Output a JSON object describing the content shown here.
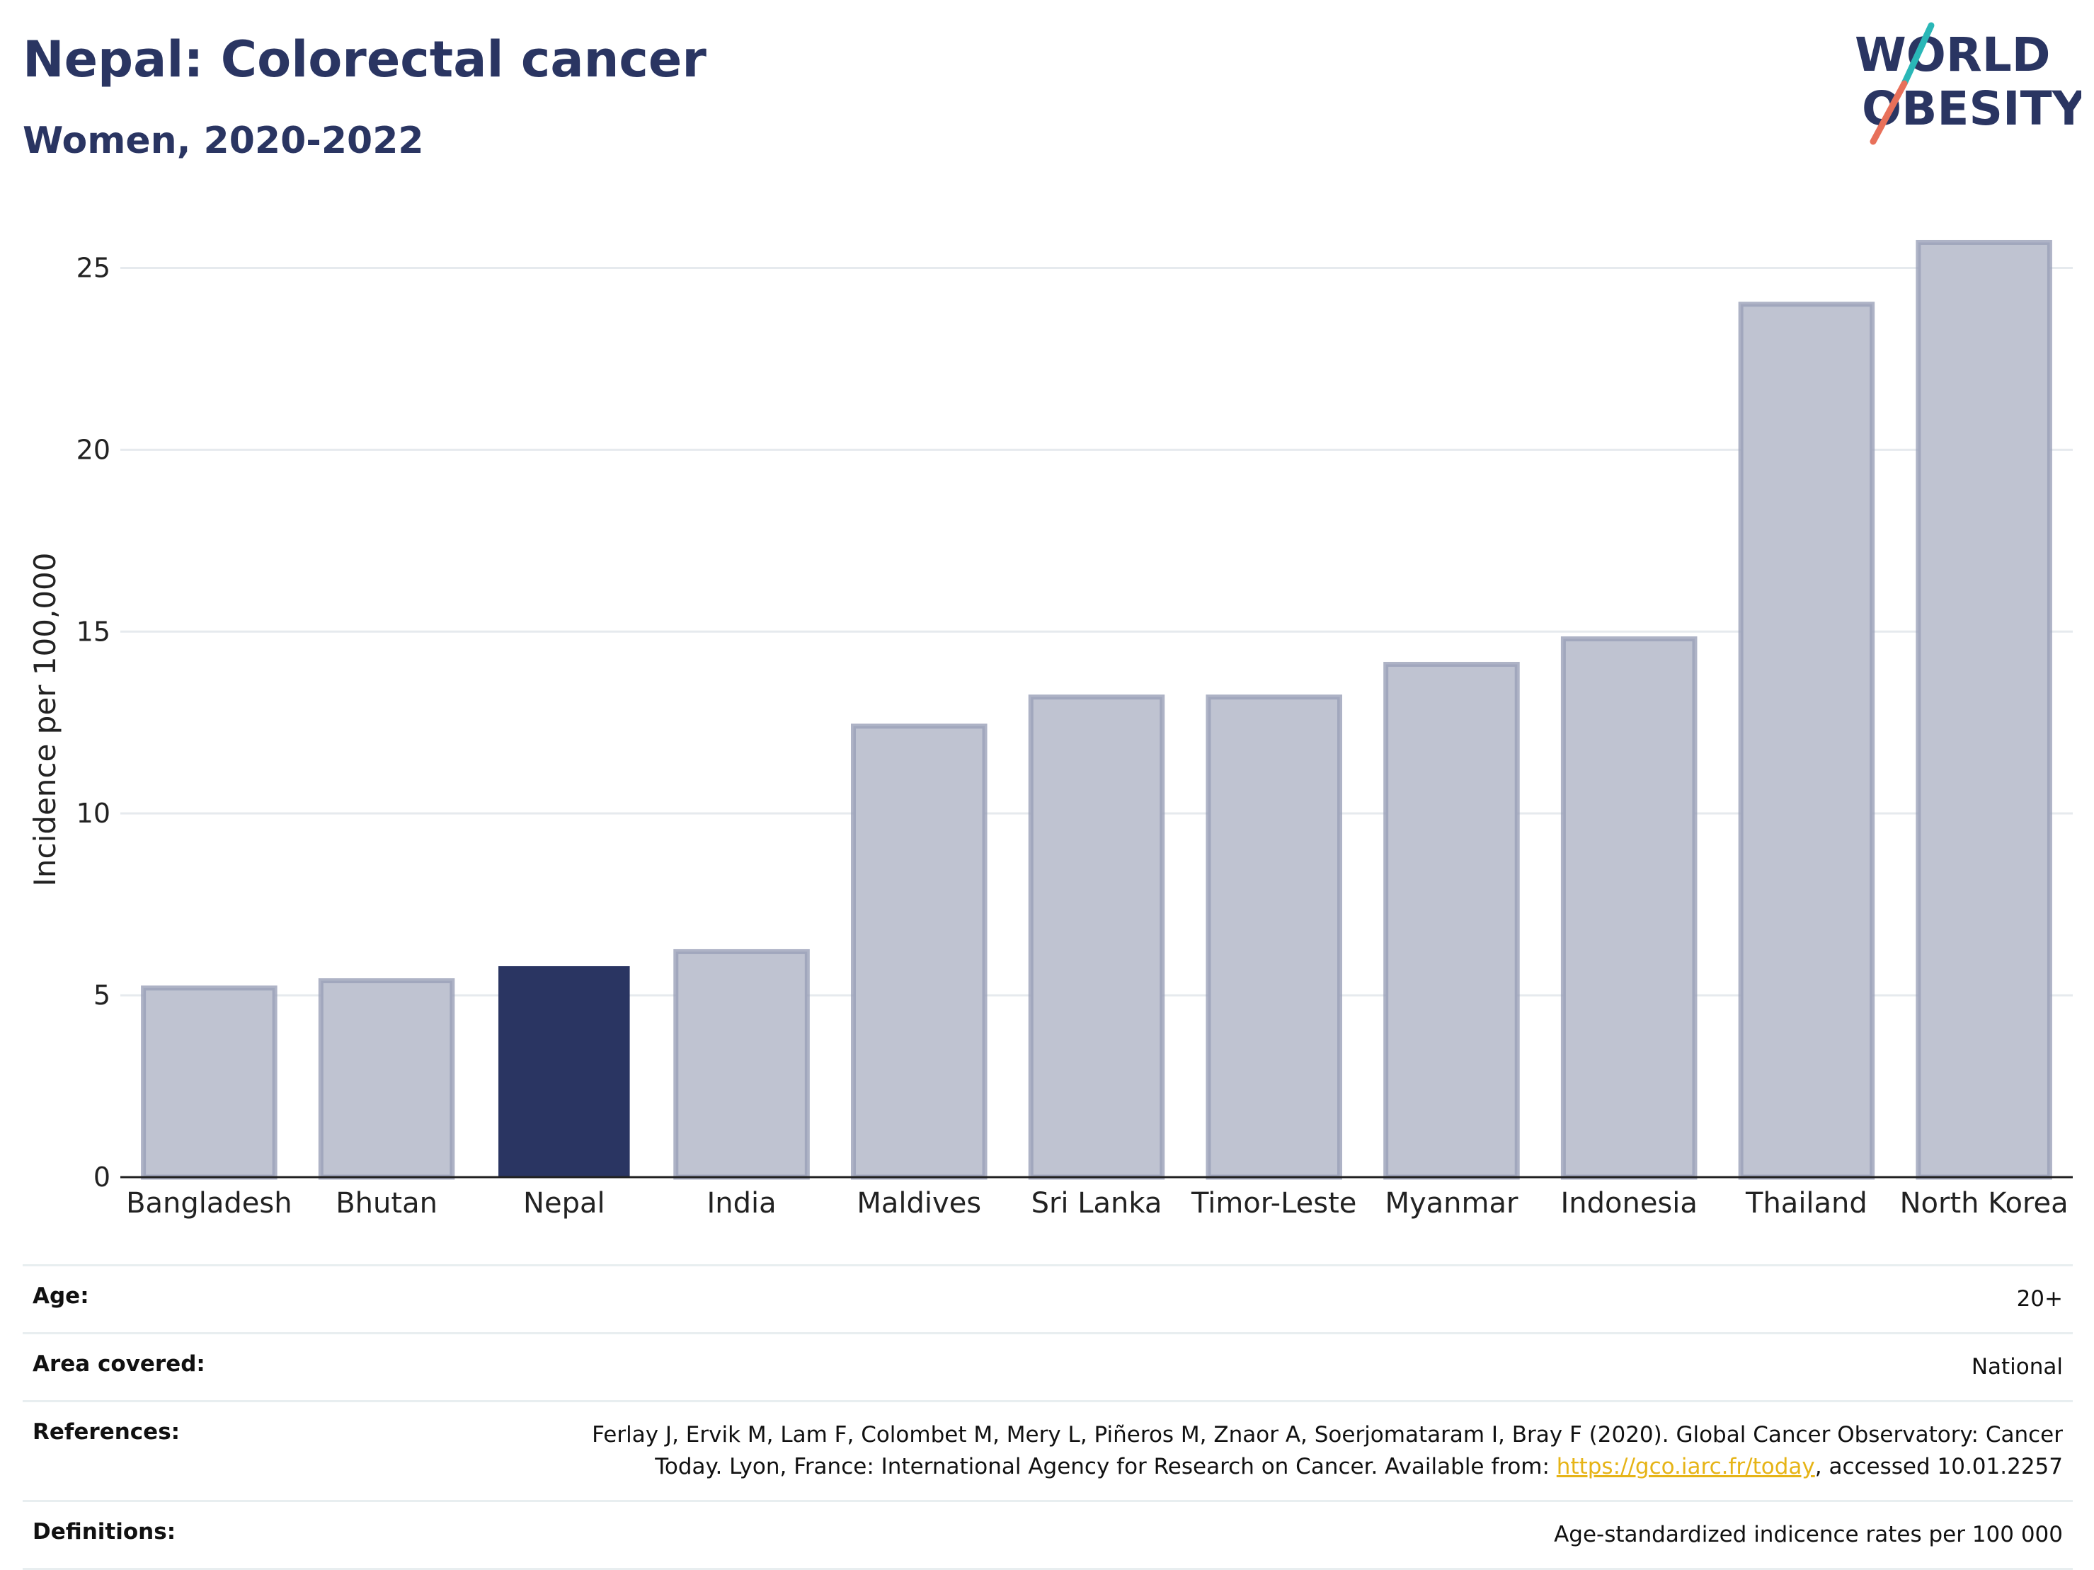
{
  "header": {
    "title": "Nepal: Colorectal cancer",
    "subtitle": "Women, 2020-2022"
  },
  "logo": {
    "text_line1": "WORLD",
    "text_line2": "OBESITY",
    "colors": {
      "text": "#2a3562",
      "slash_top": "#2ab7b7",
      "slash_bottom": "#e8705a"
    }
  },
  "chart_data": {
    "type": "bar",
    "categories": [
      "Bangladesh",
      "Bhutan",
      "Nepal",
      "India",
      "Maldives",
      "Sri Lanka",
      "Timor-Leste",
      "Myanmar",
      "Indonesia",
      "Thailand",
      "North Korea"
    ],
    "values": [
      5.2,
      5.4,
      5.8,
      6.2,
      12.4,
      13.2,
      13.2,
      14.1,
      14.8,
      24.0,
      25.7
    ],
    "highlight": "Nepal",
    "ylabel": "Incidence per 100,000",
    "xlabel": "",
    "ylim": [
      0,
      27.5
    ],
    "yticks": [
      0,
      5,
      10,
      15,
      20,
      25
    ],
    "grid": true,
    "colors": {
      "highlight": "#2a3562",
      "other_fill": "#bfc3d1",
      "other_stroke": "#9aa0b8"
    }
  },
  "meta": {
    "age": {
      "label": "Age:",
      "value": "20+"
    },
    "area": {
      "label": "Area covered:",
      "value": "National"
    },
    "references": {
      "label": "References:",
      "text_line1": "Ferlay J, Ervik M, Lam F, Colombet M, Mery L, Piñeros M, Znaor A, Soerjomataram I, Bray F (2020). Global Cancer Observatory: Cancer",
      "text_line2_pre": "Today. Lyon, France: International Agency for Research on Cancer. Available from: ",
      "link": "https://gco.iarc.fr/today",
      "text_line2_post": ", accessed 10.01.2257"
    },
    "definitions": {
      "label": "Definitions:",
      "value": "Age-standardized indicence rates per 100 000"
    }
  }
}
